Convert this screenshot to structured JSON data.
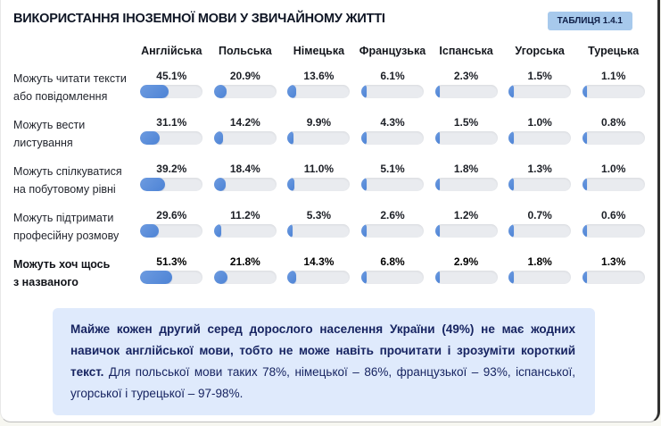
{
  "header": {
    "title": "ВИКОРИСТАННЯ ІНОЗЕМНОЇ МОВИ У ЗВИЧАЙНОМУ ЖИТТІ",
    "badge": "ТАБЛИЦЯ 1.4.1"
  },
  "chart_data": {
    "type": "bar",
    "orientation": "horizontal-bullet-grid",
    "title": "ВИКОРИСТАННЯ ІНОЗЕМНОЇ МОВИ У ЗВИЧАЙНОМУ ЖИТТІ",
    "categories": [
      "Англійська",
      "Польська",
      "Німецька",
      "Французька",
      "Іспанська",
      "Угорська",
      "Турецька"
    ],
    "rows": [
      {
        "label": "Можуть читати тексти\nабо повідомлення",
        "values": [
          45.1,
          20.9,
          13.6,
          6.1,
          2.3,
          1.5,
          1.1
        ],
        "bold": false
      },
      {
        "label": "Можуть вести\nлистування",
        "values": [
          31.1,
          14.2,
          9.9,
          4.3,
          1.5,
          1.0,
          0.8
        ],
        "bold": false
      },
      {
        "label": "Можуть спілкуватися\nна побутовому рівні",
        "values": [
          39.2,
          18.4,
          11.0,
          5.1,
          1.8,
          1.3,
          1.0
        ],
        "bold": false
      },
      {
        "label": "Можуть підтримати\nпрофесійну розмову",
        "values": [
          29.6,
          11.2,
          5.3,
          2.6,
          1.2,
          0.7,
          0.6
        ],
        "bold": false
      },
      {
        "label": "Можуть хоч щось\nз названого",
        "values": [
          51.3,
          21.8,
          14.3,
          6.8,
          2.9,
          1.8,
          1.3
        ],
        "bold": true
      }
    ],
    "value_suffix": "%",
    "value_decimals": 1,
    "scale_max": 100,
    "legend": "none",
    "grid": "off"
  },
  "note": {
    "bold_text": "Майже кожен другий серед дорослого населення України (49%) не має жодних навичок англійської мови, тобто не може навіть прочитати і зрозуміти короткий текст.",
    "regular_text": "Для польської мови таких 78%, німецької – 86%, французької – 93%, іспанської, угорської і турецької – 97-98%."
  },
  "colors": {
    "bar_fill_start": "#6d9be0",
    "bar_fill_end": "#4d83d5",
    "bar_track": "#e9ebef",
    "badge_bg": "#a7c9ec",
    "note_bg": "#dfeafc",
    "note_text": "#172461",
    "title_text": "#0e1524"
  }
}
